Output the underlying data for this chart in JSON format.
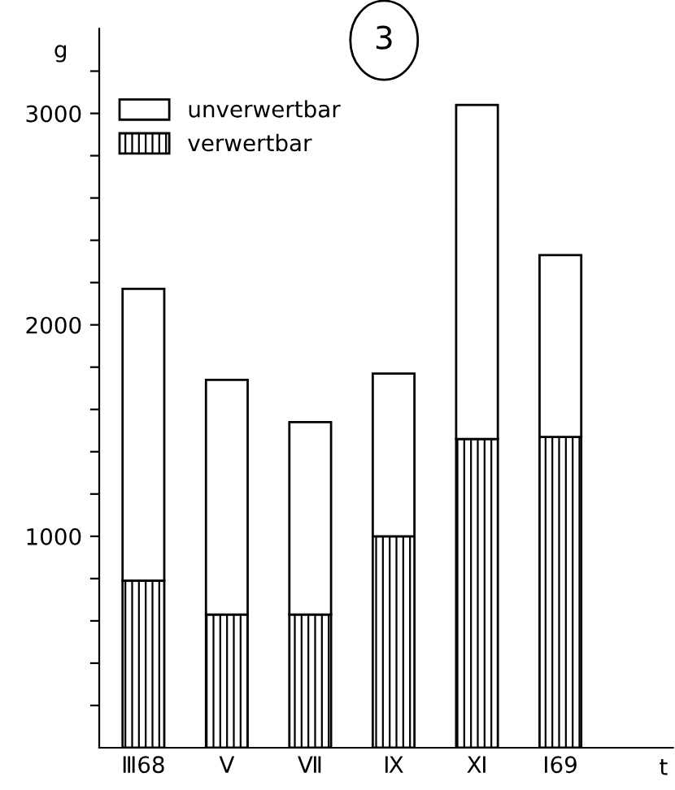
{
  "chart_data": {
    "type": "bar",
    "title": "3",
    "xlabel": "t",
    "ylabel": "g",
    "categories": [
      "Ⅲ68",
      "Ⅴ",
      "Ⅶ",
      "Ⅸ",
      "Ⅺ",
      "Ⅰ69"
    ],
    "stacked": true,
    "series": [
      {
        "name": "verwertbar",
        "color": "#000000",
        "values": [
          790,
          630,
          630,
          1000,
          1460,
          1470
        ]
      },
      {
        "name": "unverwertbar",
        "color": "#ffffff",
        "values": [
          1380,
          1110,
          910,
          770,
          1580,
          860
        ]
      }
    ],
    "ylim": [
      0,
      3400
    ],
    "yticks": [
      {
        "value": 200,
        "label": null
      },
      {
        "value": 400,
        "label": null
      },
      {
        "value": 600,
        "label": null
      },
      {
        "value": 800,
        "label": null
      },
      1000,
      {
        "value": 1200,
        "label": null
      },
      {
        "value": 1400,
        "label": null
      },
      {
        "value": 1600,
        "label": null
      },
      {
        "value": 1800,
        "label": null
      },
      2000,
      {
        "value": 2200,
        "label": null
      },
      {
        "value": 2400,
        "label": null
      },
      {
        "value": 2600,
        "label": null
      },
      {
        "value": 2800,
        "label": null
      },
      3000,
      {
        "value": 3200,
        "label": null
      }
    ],
    "grid": false,
    "legend": "top left"
  }
}
